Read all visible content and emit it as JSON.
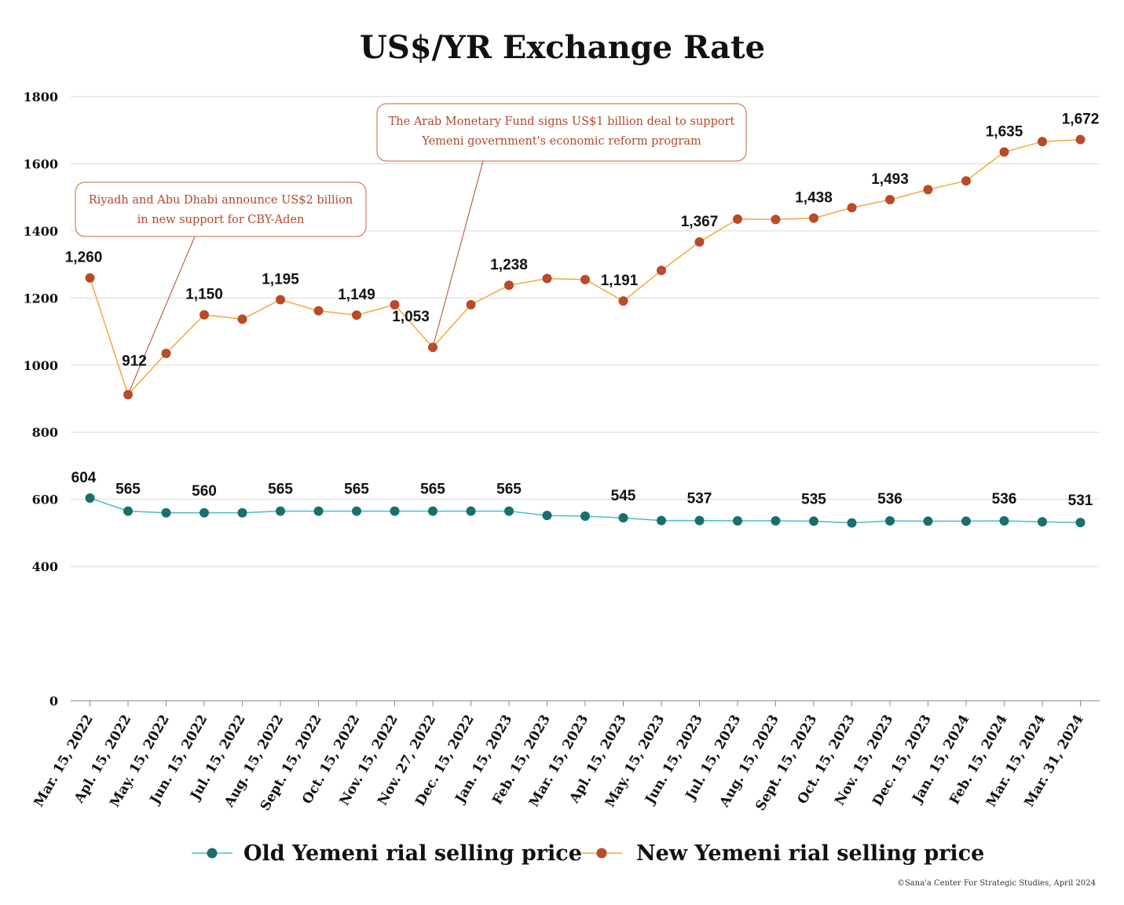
{
  "chart_data": {
    "type": "line",
    "title": "US$/YR Exchange Rate",
    "xlabel": "",
    "ylabel": "",
    "ylim": [
      0,
      1800
    ],
    "yticks": [
      0,
      400,
      600,
      800,
      1000,
      1200,
      1400,
      1600,
      1800
    ],
    "grid": true,
    "legend_position": "bottom",
    "categories": [
      "Mar. 15, 2022",
      "Apl. 15, 2022",
      "May. 15, 2022",
      "Jun. 15, 2022",
      "Jul. 15, 2022",
      "Aug. 15, 2022",
      "Sept. 15, 2022",
      "Oct. 15, 2022",
      "Nov. 15, 2022",
      "Nov. 27, 2022",
      "Dec. 15, 2022",
      "Jan. 15, 2023",
      "Feb. 15, 2023",
      "Mar. 15, 2023",
      "Apl. 15, 2023",
      "May. 15, 2023",
      "Jun. 15, 2023",
      "Jul. 15, 2023",
      "Aug. 15, 2023",
      "Sept. 15, 2023",
      "Oct. 15, 2023",
      "Nov. 15, 2023",
      "Dec. 15, 2023",
      "Jan. 15, 2024",
      "Feb. 15, 2024",
      "Mar. 15, 2024",
      "Mar. 31, 2024"
    ],
    "series": [
      {
        "name": "Old Yemeni rial selling price",
        "color": "#1a6e6e",
        "line_color": "#4cbcc4",
        "values": [
          604,
          565,
          560,
          560,
          560,
          565,
          565,
          565,
          565,
          565,
          565,
          565,
          552,
          550,
          545,
          537,
          537,
          536,
          536,
          535,
          530,
          536,
          535,
          535,
          536,
          533,
          531
        ],
        "labels": [
          {
            "index": 0,
            "text": "604"
          },
          {
            "index": 1,
            "text": "565"
          },
          {
            "index": 3,
            "text": "560"
          },
          {
            "index": 5,
            "text": "565"
          },
          {
            "index": 7,
            "text": "565"
          },
          {
            "index": 9,
            "text": "565"
          },
          {
            "index": 11,
            "text": "565"
          },
          {
            "index": 14,
            "text": "545"
          },
          {
            "index": 16,
            "text": "537"
          },
          {
            "index": 19,
            "text": "535"
          },
          {
            "index": 21,
            "text": "536"
          },
          {
            "index": 24,
            "text": "536"
          },
          {
            "index": 26,
            "text": "531"
          }
        ]
      },
      {
        "name": "New Yemeni rial selling price",
        "color": "#b94a2a",
        "line_color": "#f2a93b",
        "values": [
          1260,
          912,
          1035,
          1150,
          1137,
          1195,
          1162,
          1149,
          1180,
          1053,
          1180,
          1238,
          1258,
          1255,
          1191,
          1282,
          1367,
          1435,
          1434,
          1438,
          1469,
          1493,
          1523,
          1549,
          1635,
          1666,
          1672
        ],
        "labels": [
          {
            "index": 0,
            "text": "1,260"
          },
          {
            "index": 1,
            "text": "912"
          },
          {
            "index": 3,
            "text": "1,150"
          },
          {
            "index": 5,
            "text": "1,195"
          },
          {
            "index": 7,
            "text": "1,149"
          },
          {
            "index": 9,
            "text": "1,053"
          },
          {
            "index": 11,
            "text": "1,238"
          },
          {
            "index": 14,
            "text": "1,191"
          },
          {
            "index": 16,
            "text": "1,367"
          },
          {
            "index": 19,
            "text": "1,438"
          },
          {
            "index": 21,
            "text": "1,493"
          },
          {
            "index": 24,
            "text": "1,635"
          },
          {
            "index": 26,
            "text": "1,672"
          }
        ]
      }
    ],
    "annotations": [
      {
        "lines": [
          "Riyadh and Abu Dhabi announce US$2 billion",
          "in new support for CBY-Aden"
        ],
        "points_to_index": 1
      },
      {
        "lines": [
          "The Arab Monetary Fund signs US$1 billion deal to support",
          "Yemeni government's economic reform program"
        ],
        "points_to_index": 9
      }
    ],
    "credit": "©Sana'a Center For Strategic Studies, April 2024"
  },
  "colors": {
    "annotation_text": "#b3492a",
    "annotation_border": "#c9633d",
    "grid": "#d9d9d9",
    "axis": "#888888"
  }
}
